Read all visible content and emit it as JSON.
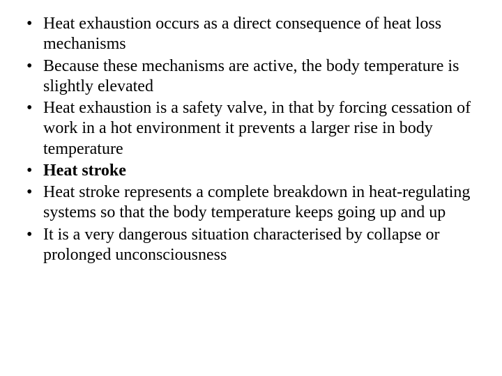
{
  "bullets": [
    {
      "text": "Heat exhaustion occurs as a direct consequence of heat loss mechanisms",
      "bold": false
    },
    {
      "text": "Because these mechanisms are active, the body temperature is slightly elevated",
      "bold": false
    },
    {
      "text": "Heat exhaustion is a safety valve, in that by forcing cessation of work in a hot environment it prevents a larger rise in body temperature",
      "bold": false
    },
    {
      "text": "Heat stroke",
      "bold": true
    },
    {
      "text": "Heat stroke represents a complete breakdown in heat-regulating systems so that the body temperature keeps going up and up",
      "bold": false
    },
    {
      "text": "It is a very dangerous situation characterised by collapse or prolonged unconsciousness",
      "bold": false
    }
  ],
  "style": {
    "background_color": "#ffffff",
    "text_color": "#000000",
    "font_family": "Times New Roman",
    "font_size_pt": 24,
    "bullet_glyph": "•",
    "line_height": 1.22
  }
}
